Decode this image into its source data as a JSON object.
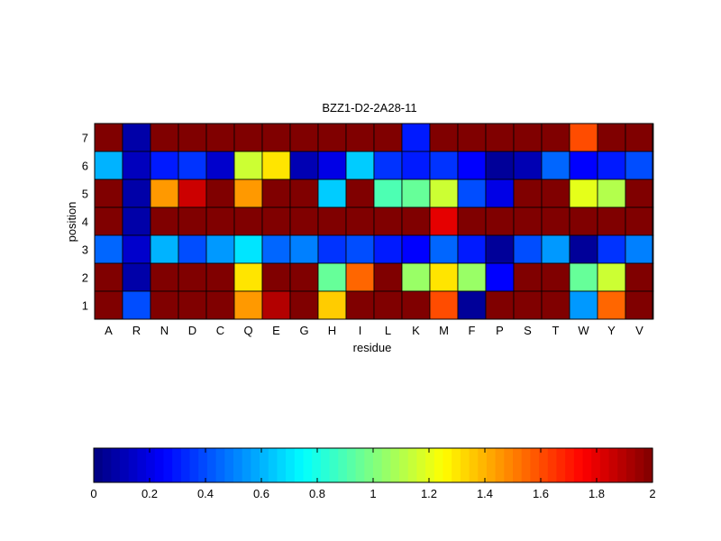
{
  "chart_data": {
    "type": "heatmap",
    "title": "BZZ1-D2-2A28-11",
    "xlabel": "residue",
    "ylabel": "position",
    "categories": [
      "A",
      "R",
      "N",
      "D",
      "C",
      "Q",
      "E",
      "G",
      "H",
      "I",
      "L",
      "K",
      "M",
      "F",
      "P",
      "S",
      "T",
      "W",
      "Y",
      "V"
    ],
    "rows": [
      "7",
      "6",
      "5",
      "4",
      "3",
      "2",
      "1"
    ],
    "values": [
      [
        2,
        0.08,
        2,
        2,
        2,
        2,
        2,
        2,
        2,
        2,
        2,
        0.3,
        2,
        2,
        2,
        2,
        2,
        1.6,
        2,
        2
      ],
      [
        0.6,
        0.12,
        0.3,
        0.35,
        0.15,
        1.15,
        1.3,
        0.1,
        0.2,
        0.65,
        0.35,
        0.3,
        0.35,
        0.25,
        0.05,
        0.1,
        0.45,
        0.25,
        0.3,
        0.4
      ],
      [
        2,
        0.08,
        1.45,
        1.85,
        2,
        1.45,
        2,
        2,
        0.65,
        2,
        0.9,
        0.95,
        1.15,
        0.4,
        0.2,
        2,
        2,
        1.2,
        1.1,
        2
      ],
      [
        2,
        0.08,
        2,
        2,
        2,
        2,
        2,
        2,
        2,
        2,
        2,
        2,
        1.8,
        2,
        2,
        2,
        2,
        2,
        2,
        2
      ],
      [
        0.45,
        0.15,
        0.6,
        0.4,
        0.55,
        0.7,
        0.45,
        0.5,
        0.35,
        0.4,
        0.3,
        0.25,
        0.45,
        0.3,
        0.05,
        0.4,
        0.55,
        0.05,
        0.35,
        0.5
      ],
      [
        2,
        0.08,
        2,
        2,
        2,
        1.3,
        2,
        2,
        0.95,
        1.55,
        2,
        1.05,
        1.3,
        1.05,
        0.25,
        2,
        2,
        0.95,
        1.15,
        2
      ],
      [
        2,
        0.4,
        2,
        2,
        2,
        1.45,
        1.9,
        2,
        1.35,
        2,
        2,
        2,
        1.6,
        0.05,
        2,
        2,
        2,
        0.55,
        1.55,
        2
      ]
    ],
    "colorbar": {
      "min": 0,
      "max": 2,
      "ticks": [
        "0",
        "0.2",
        "0.4",
        "0.6",
        "0.8",
        "1",
        "1.2",
        "1.4",
        "1.6",
        "1.8",
        "2"
      ]
    },
    "colormap": "jet"
  }
}
